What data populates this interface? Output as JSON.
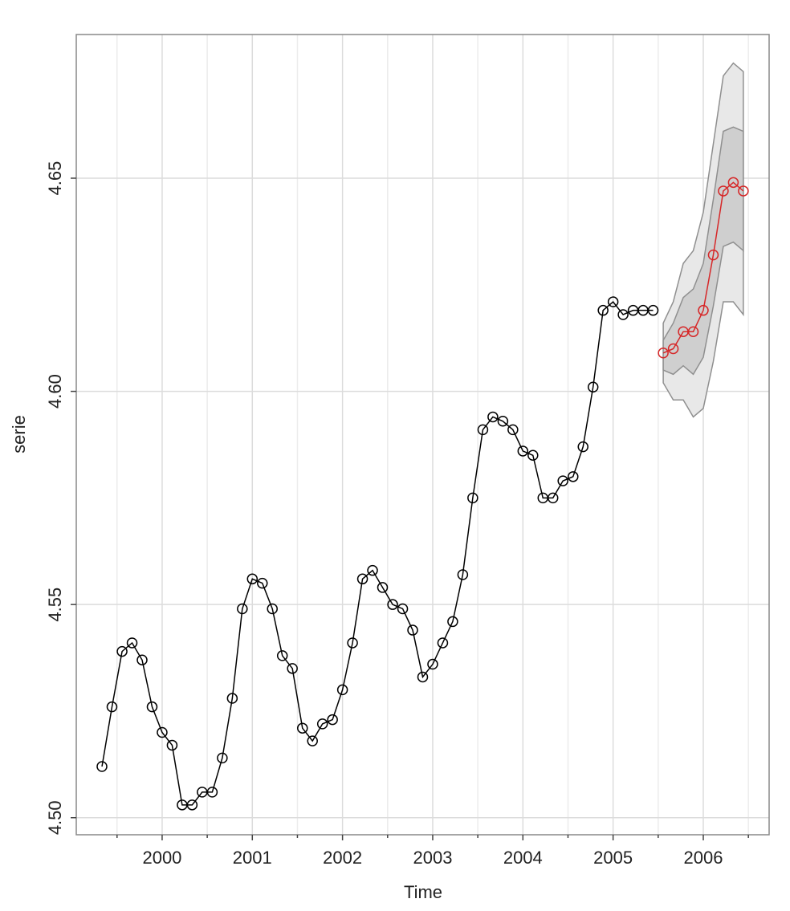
{
  "chart_data": {
    "type": "line",
    "x_label": "Time",
    "y_label": "serie",
    "xlim": [
      1999.048,
      2006.73
    ],
    "ylim": [
      4.496,
      4.6837
    ],
    "xticks": [
      2000,
      2001,
      2002,
      2003,
      2004,
      2005,
      2006
    ],
    "xminorticks": [
      1999.5,
      2000.5,
      2001.5,
      2002.5,
      2003.5,
      2004.5,
      2005.5,
      2006.5
    ],
    "yticks": [
      {
        "value": 4.5,
        "label": "4.50"
      },
      4.55,
      {
        "value": 4.6,
        "label": "4.60"
      },
      4.65
    ],
    "grid": true,
    "series": [
      {
        "color": "#000000",
        "x": [
          1999.333,
          1999.444,
          1999.556,
          1999.667,
          1999.778,
          1999.889,
          2000.0,
          2000.111,
          2000.222,
          2000.333,
          2000.444,
          2000.556,
          2000.667,
          2000.778,
          2000.889,
          2001.0,
          2001.111,
          2001.222,
          2001.333,
          2001.444,
          2001.556,
          2001.667,
          2001.778,
          2001.889,
          2002.0,
          2002.111,
          2002.222,
          2002.333,
          2002.444,
          2002.556,
          2002.667,
          2002.778,
          2002.889,
          2003.0,
          2003.111,
          2003.222,
          2003.333,
          2003.444,
          2003.556,
          2003.667,
          2003.778,
          2003.889,
          2004.0,
          2004.111,
          2004.222,
          2004.333,
          2004.444,
          2004.556,
          2004.667,
          2004.778,
          2004.889,
          2005.0,
          2005.111,
          2005.222,
          2005.333,
          2005.444
        ],
        "values": [
          4.512,
          4.526,
          4.539,
          4.541,
          4.537,
          4.526,
          4.52,
          4.517,
          4.503,
          4.503,
          4.506,
          4.506,
          4.514,
          4.528,
          4.549,
          4.556,
          4.555,
          4.549,
          4.538,
          4.535,
          4.521,
          4.518,
          4.522,
          4.523,
          4.53,
          4.541,
          4.556,
          4.558,
          4.554,
          4.55,
          4.549,
          4.544,
          4.533,
          4.536,
          4.541,
          4.546,
          4.557,
          4.575,
          4.591,
          4.594,
          4.593,
          4.591,
          4.586,
          4.585,
          4.575,
          4.575,
          4.579,
          4.58,
          4.587,
          4.601,
          4.619,
          4.621,
          4.618,
          4.619,
          4.619,
          4.619
        ]
      },
      {
        "color": "#d62728",
        "x": [
          2005.556,
          2005.667,
          2005.778,
          2005.889,
          2006.0,
          2006.111,
          2006.222,
          2006.333,
          2006.444
        ],
        "values": [
          4.609,
          4.61,
          4.614,
          4.614,
          4.619,
          4.632,
          4.647,
          4.649,
          4.647
        ]
      }
    ],
    "bands": [
      {
        "color": "#e8e8e8",
        "edge": "#8f8f8f",
        "lower": [
          4.602,
          4.598,
          4.598,
          4.594,
          4.596,
          4.607,
          4.621,
          4.621,
          4.618
        ],
        "upper": [
          4.616,
          4.621,
          4.63,
          4.633,
          4.642,
          4.658,
          4.674,
          4.677,
          4.675
        ]
      },
      {
        "color": "#cfcfcf",
        "edge": "#8f8f8f",
        "lower": [
          4.605,
          4.604,
          4.606,
          4.604,
          4.608,
          4.62,
          4.634,
          4.635,
          4.633
        ],
        "upper": [
          4.612,
          4.616,
          4.622,
          4.624,
          4.63,
          4.645,
          4.661,
          4.662,
          4.661
        ]
      }
    ]
  }
}
